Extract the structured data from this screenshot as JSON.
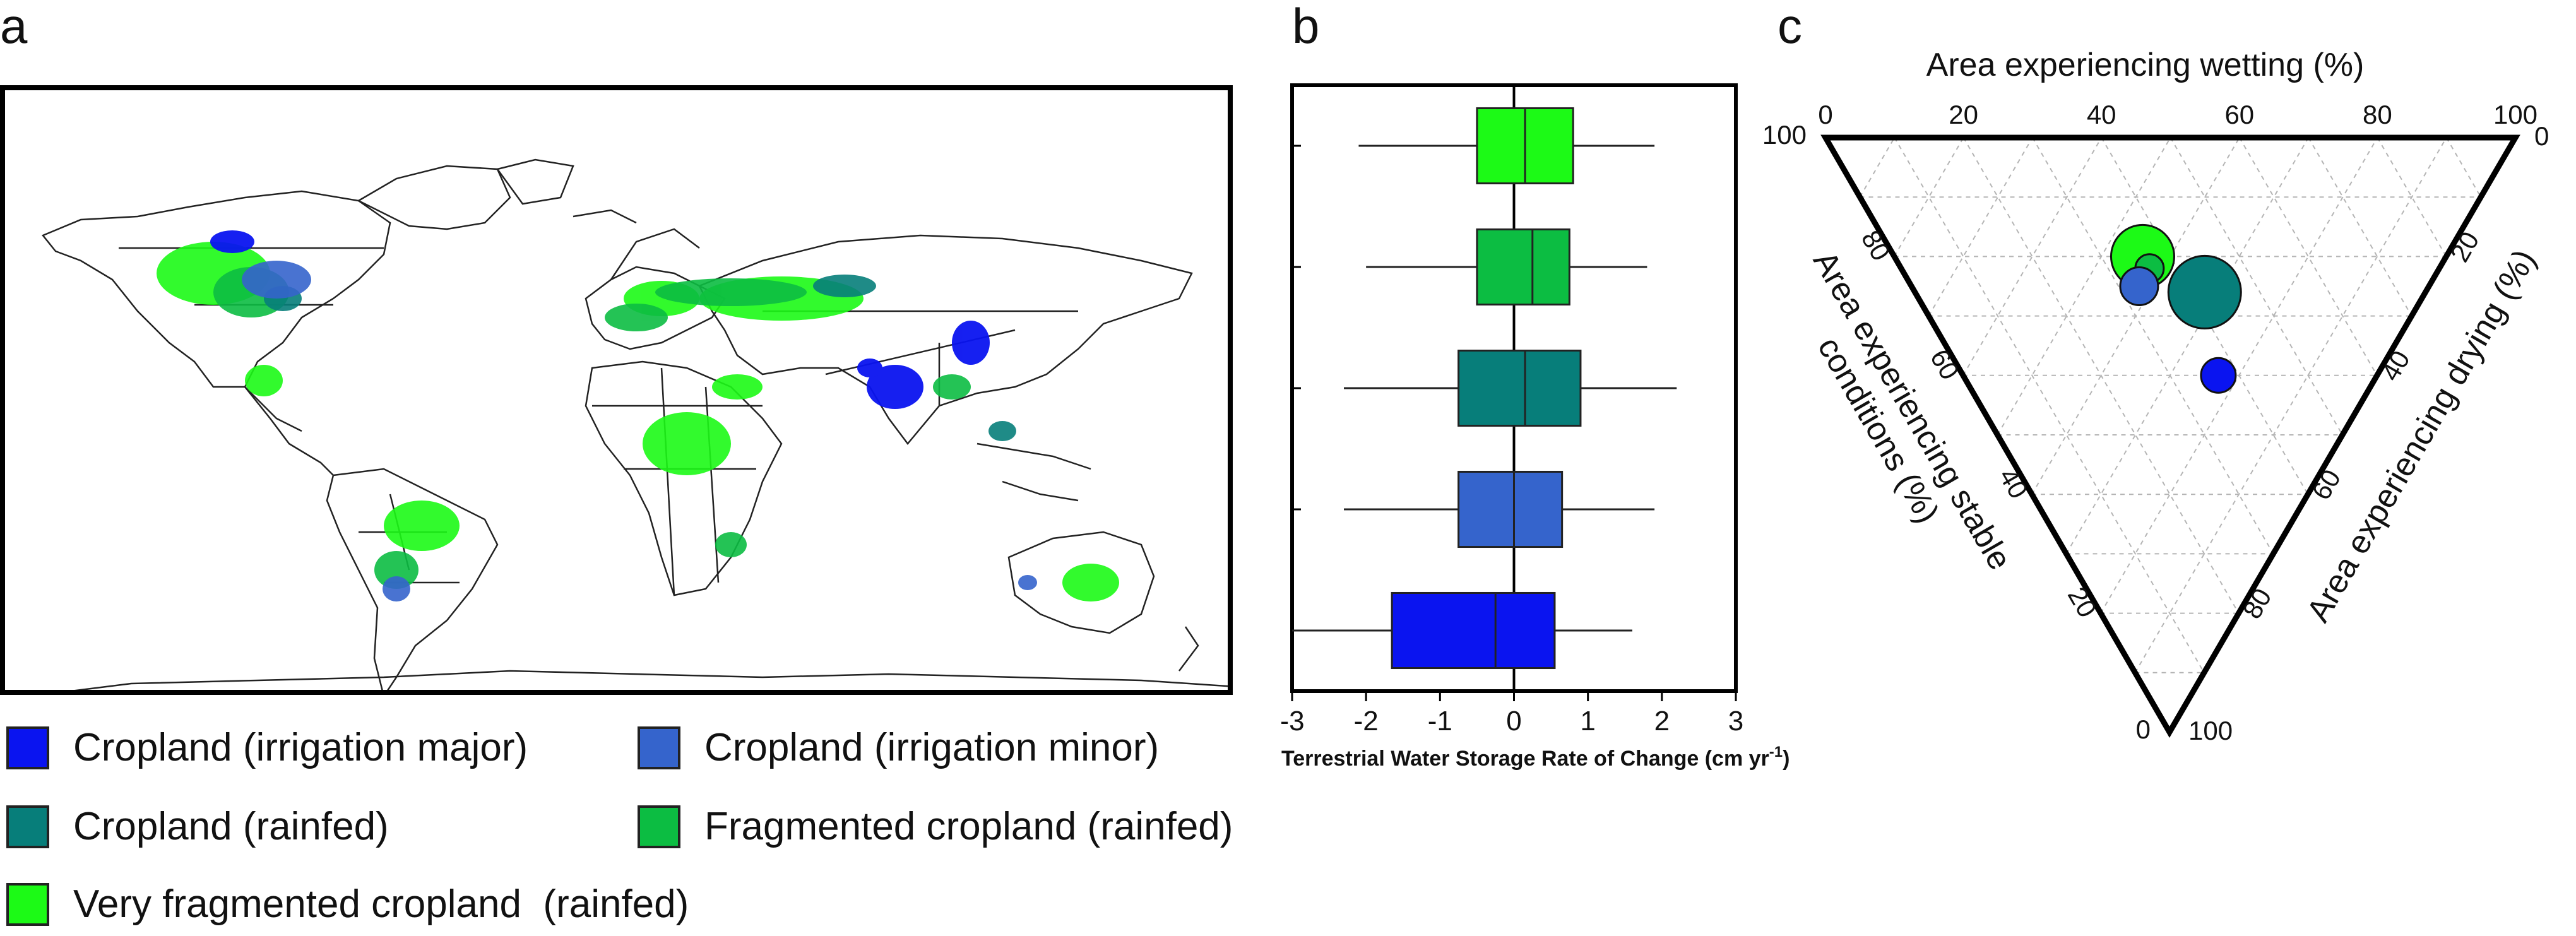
{
  "panel_labels": {
    "a": "a",
    "b": "b",
    "c": "c"
  },
  "categories": [
    {
      "key": "irrigation_major",
      "label": "Cropland (irrigation major)",
      "color": "#0a14f0"
    },
    {
      "key": "irrigation_minor",
      "label": "Cropland (irrigation minor)",
      "color": "#3564cc"
    },
    {
      "key": "rainfed",
      "label": "Cropland (rainfed)",
      "color": "#077e7a"
    },
    {
      "key": "fragmented_rainfed",
      "label": "Fragmented cropland (rainfed)",
      "color": "#0cbd42"
    },
    {
      "key": "very_fragmented_rainfed",
      "label": "Very fragmented cropland  (rainfed)",
      "color": "#1cfa16"
    }
  ],
  "chart_data": [
    {
      "panel": "a",
      "type": "map",
      "description_key": "global cropland categories",
      "legend_entries": [
        "Cropland (irrigation major)",
        "Cropland (irrigation minor)",
        "Cropland (rainfed)",
        "Fragmented cropland (rainfed)",
        "Very fragmented cropland  (rainfed)"
      ]
    },
    {
      "panel": "b",
      "type": "boxplot",
      "orientation": "horizontal",
      "xlabel": "Terrestrial Water Storage Rate of Change (cm yr",
      "xlabel_sup": "-1",
      "xlabel_close": ")",
      "xlim": [
        -3,
        3
      ],
      "xticks": [
        -3,
        -2,
        -1,
        0,
        1,
        2,
        3
      ],
      "xtick_labels": [
        "-3",
        "-2",
        "-1",
        "0",
        "1",
        "2",
        "3"
      ],
      "series": [
        {
          "name": "Very fragmented cropland  (rainfed)",
          "color": "#1cfa16",
          "whisker_low": -2.1,
          "q1": -0.5,
          "median": 0.15,
          "q3": 0.8,
          "whisker_high": 1.9
        },
        {
          "name": "Fragmented cropland (rainfed)",
          "color": "#0cbd42",
          "whisker_low": -2.0,
          "q1": -0.5,
          "median": 0.25,
          "q3": 0.75,
          "whisker_high": 1.8
        },
        {
          "name": "Cropland (rainfed)",
          "color": "#077e7a",
          "whisker_low": -2.3,
          "q1": -0.75,
          "median": 0.15,
          "q3": 0.9,
          "whisker_high": 2.2
        },
        {
          "name": "Cropland (irrigation minor)",
          "color": "#3564cc",
          "whisker_low": -2.3,
          "q1": -0.75,
          "median": 0.0,
          "q3": 0.65,
          "whisker_high": 1.9
        },
        {
          "name": "Cropland (irrigation major)",
          "color": "#0a14f0",
          "whisker_low": -3.0,
          "q1": -1.65,
          "median": -0.25,
          "q3": 0.55,
          "whisker_high": 1.6
        }
      ]
    },
    {
      "panel": "c",
      "type": "ternary",
      "axes": {
        "wetting": {
          "label": "Area experiencing wetting (%)",
          "ticks": [
            "0",
            "20",
            "40",
            "60",
            "80",
            "100"
          ]
        },
        "drying": {
          "label": "Area experiencing drying (%)",
          "ticks": [
            "0",
            "20",
            "40",
            "60",
            "80",
            "100"
          ]
        },
        "stable": {
          "label_line1": "Area experiencing stable",
          "label_line2": "conditions (%)",
          "ticks": [
            "100",
            "80",
            "60",
            "40",
            "20",
            "0"
          ]
        }
      },
      "grid": true,
      "points": [
        {
          "name": "Very fragmented cropland  (rainfed)",
          "color": "#1cfa16",
          "wetting": 36,
          "drying": 20,
          "stable": 44,
          "size": 1.0
        },
        {
          "name": "Fragmented cropland (rainfed)",
          "color": "#0cbd42",
          "wetting": 36,
          "drying": 22,
          "stable": 42,
          "size": 0.45
        },
        {
          "name": "Cropland (rainfed)",
          "color": "#077e7a",
          "wetting": 42,
          "drying": 26,
          "stable": 32,
          "size": 1.15
        },
        {
          "name": "Cropland (irrigation minor)",
          "color": "#3564cc",
          "wetting": 33,
          "drying": 25,
          "stable": 42,
          "size": 0.6
        },
        {
          "name": "Cropland (irrigation major)",
          "color": "#0a14f0",
          "wetting": 37,
          "drying": 40,
          "stable": 23,
          "size": 0.55
        }
      ]
    }
  ]
}
